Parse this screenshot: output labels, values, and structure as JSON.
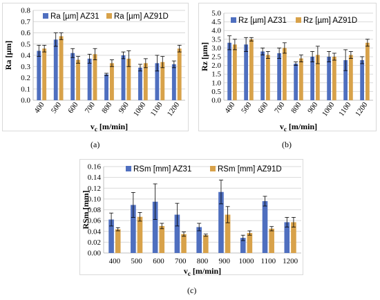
{
  "captions": {
    "a": "(a)",
    "b": "(b)",
    "c": "(c)"
  },
  "colors": {
    "series1": "#4f6fbf",
    "series2": "#d8a24a",
    "grid": "#d9d9d9"
  },
  "chart_data": [
    {
      "type": "bar",
      "id": "a",
      "categories": [
        "400",
        "500",
        "600",
        "700",
        "800",
        "900",
        "1000",
        "1100",
        "1200"
      ],
      "series": [
        {
          "name": "Ra [µm] AZ31",
          "values": [
            0.44,
            0.54,
            0.42,
            0.37,
            0.23,
            0.4,
            0.29,
            0.33,
            0.32
          ],
          "errors": [
            0.05,
            0.06,
            0.04,
            0.04,
            0.01,
            0.03,
            0.03,
            0.07,
            0.03
          ]
        },
        {
          "name": "Ra [µm] AZ91D",
          "values": [
            0.46,
            0.57,
            0.36,
            0.41,
            0.33,
            0.37,
            0.33,
            0.34,
            0.46
          ],
          "errors": [
            0.03,
            0.03,
            0.03,
            0.05,
            0.03,
            0.07,
            0.04,
            0.05,
            0.03
          ]
        }
      ],
      "ylabel": "Ra [µm]",
      "xlabel_main": "v",
      "xlabel_sub": "c",
      "xlabel_rest": " [m/min]",
      "ylim": [
        0,
        0.8
      ],
      "yticks": [
        "0.0",
        "0.1",
        "0.2",
        "0.3",
        "0.4",
        "0.5",
        "0.6",
        "0.7",
        "0.8"
      ],
      "grid": true,
      "legend": "top"
    },
    {
      "type": "bar",
      "id": "b",
      "categories": [
        "400",
        "500",
        "600",
        "700",
        "800",
        "900",
        "1000",
        "1100",
        "1200"
      ],
      "series": [
        {
          "name": "Rz [µm] AZ31",
          "values": [
            3.3,
            3.2,
            2.8,
            2.7,
            2.1,
            2.5,
            2.5,
            2.3,
            2.3
          ],
          "errors": [
            0.4,
            0.4,
            0.2,
            0.3,
            0.1,
            0.3,
            0.3,
            0.6,
            0.2
          ]
        },
        {
          "name": "Rz [µm] AZ91D",
          "values": [
            3.2,
            3.5,
            2.6,
            3.0,
            2.4,
            2.6,
            2.5,
            2.6,
            3.3
          ],
          "errors": [
            0.3,
            0.1,
            0.2,
            0.3,
            0.2,
            0.5,
            0.2,
            0.2,
            0.2
          ]
        }
      ],
      "ylabel": "Rz [µm]",
      "xlabel_main": "v",
      "xlabel_sub": "c",
      "xlabel_rest": " [m/min]",
      "ylim": [
        0,
        5
      ],
      "yticks": [
        "0.0",
        "0.5",
        "1.0",
        "1.5",
        "2.0",
        "2.5",
        "3.0",
        "3.5",
        "4.0",
        "4.5",
        "5.0"
      ],
      "grid": true,
      "legend": "top"
    },
    {
      "type": "bar",
      "id": "c",
      "categories": [
        "400",
        "500",
        "600",
        "700",
        "800",
        "900",
        "1000",
        "1100",
        "1200"
      ],
      "series": [
        {
          "name": "RSm [mm] AZ31",
          "values": [
            0.062,
            0.089,
            0.095,
            0.071,
            0.048,
            0.113,
            0.028,
            0.096,
            0.057
          ],
          "errors": [
            0.012,
            0.023,
            0.033,
            0.021,
            0.007,
            0.022,
            0.005,
            0.009,
            0.009
          ]
        },
        {
          "name": "RSm [mm] AZ91D",
          "values": [
            0.044,
            0.067,
            0.05,
            0.035,
            0.033,
            0.071,
            0.037,
            0.045,
            0.057
          ],
          "errors": [
            0.003,
            0.008,
            0.005,
            0.004,
            0.002,
            0.015,
            0.004,
            0.004,
            0.009
          ]
        }
      ],
      "ylabel": "RSm [mm]",
      "xlabel_main": "v",
      "xlabel_sub": "c",
      "xlabel_rest": " [m/min]",
      "ylim": [
        0,
        0.16
      ],
      "yticks": [
        "0.00",
        "0.02",
        "0.04",
        "0.06",
        "0.08",
        "0.10",
        "0.12",
        "0.14",
        "0.16"
      ],
      "grid": true,
      "legend": "top"
    }
  ]
}
